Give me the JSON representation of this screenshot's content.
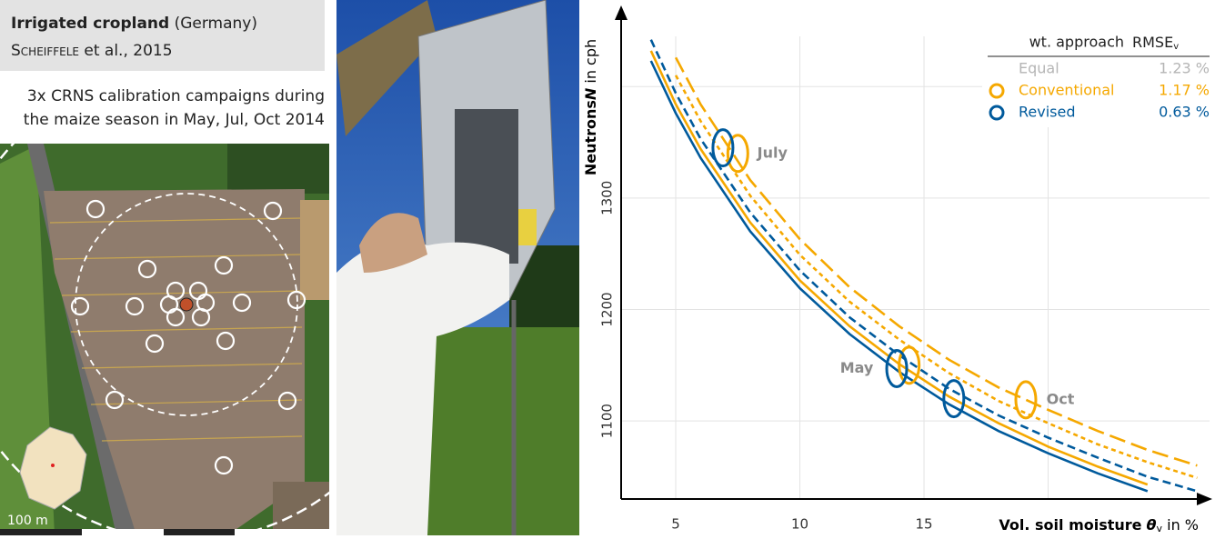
{
  "header": {
    "title_bold": "Irrigated cropland",
    "title_rest": " (Germany)",
    "citation_author": "Scheiffele",
    "citation_rest": " et al., 2015"
  },
  "description": [
    "3x CRNS calibration campaigns during",
    "the maize season in May, Jul, Oct 2014"
  ],
  "map": {
    "scale_label": "100 m"
  },
  "chart_data": {
    "type": "line",
    "y_label": {
      "bold": "Neutrons",
      "italic": "N",
      "rest": " in cph"
    },
    "x_label": {
      "bold": "Vol. soil moisture",
      "symbol": "θ",
      "sub": "v",
      "rest": " in %"
    },
    "xlim": [
      2.8,
      26.5
    ],
    "ylim": [
      1030,
      1445
    ],
    "xticks": [
      5,
      10,
      15
    ],
    "yticks": [
      1100,
      1200,
      1300
    ],
    "xgrid": [
      5,
      10,
      15,
      20
    ],
    "ygrid": [
      1100,
      1200,
      1300,
      1400
    ],
    "grid": true,
    "x": [
      4,
      5,
      6,
      8,
      10,
      12,
      14,
      16,
      18,
      20,
      22,
      24,
      26
    ],
    "series": [
      {
        "color": "#005a9c",
        "dash": "solid",
        "values": [
          1423,
          1376,
          1336,
          1270,
          1219,
          1178,
          1144,
          1115,
          1091,
          1071,
          1053,
          1037,
          null
        ]
      },
      {
        "color": "#f5a800",
        "dash": "solid",
        "values": [
          1432,
          1384,
          1344,
          1278,
          1226,
          1185,
          1151,
          1122,
          1098,
          1077,
          1059,
          1043,
          null
        ]
      },
      {
        "color": "#005a9c",
        "dash": "dashed",
        "values": [
          1442,
          1394,
          1353,
          1287,
          1235,
          1193,
          1159,
          1129,
          1105,
          1085,
          1067,
          1050,
          1037
        ]
      },
      {
        "color": "#f5a800",
        "dash": "short-dash",
        "values": [
          null,
          1410,
          1369,
          1302,
          1249,
          1207,
          1173,
          1143,
          1118,
          1098,
          1079,
          1063,
          1049
        ]
      },
      {
        "color": "#f5a800",
        "dash": "long-dash",
        "values": [
          null,
          1426,
          1384,
          1316,
          1263,
          1220,
          1185,
          1155,
          1130,
          1110,
          1091,
          1074,
          1060
        ]
      }
    ],
    "campaigns": [
      {
        "label": "July",
        "conventional_x": 7.5,
        "conventional_y": 1340,
        "revised_x": 6.9,
        "revised_y": 1345
      },
      {
        "label": "May",
        "conventional_x": 14.4,
        "conventional_y": 1150,
        "revised_x": 13.9,
        "revised_y": 1147
      },
      {
        "label": "Oct",
        "conventional_x": 19.1,
        "conventional_y": 1119,
        "revised_x": 16.2,
        "revised_y": 1120
      }
    ],
    "campaign_colors": {
      "conventional": "#f5a800",
      "revised": "#005a9c",
      "label": "#8a8a8a"
    },
    "legend": {
      "header": [
        "wt. approach",
        "RMSE"
      ],
      "header_sub": "v",
      "entries": [
        {
          "name": "Equal",
          "rmse": "1.23 %",
          "color": "#b5b5b5",
          "marker": false
        },
        {
          "name": "Conventional",
          "rmse": "1.17 %",
          "color": "#f5a800",
          "marker": true
        },
        {
          "name": "Revised",
          "rmse": "0.63 %",
          "color": "#005a9c",
          "marker": true
        }
      ]
    }
  }
}
